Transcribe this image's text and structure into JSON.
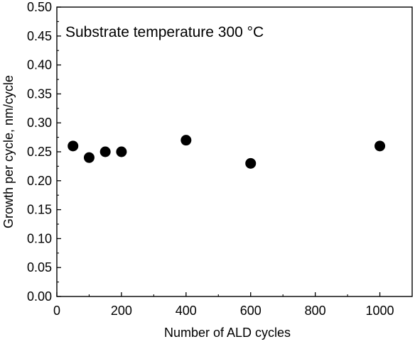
{
  "chart_data": {
    "type": "scatter",
    "title": "",
    "xlabel": "Number of ALD cycles",
    "ylabel": "Growth per cycle, nm/cycle",
    "annotation": "Substrate temperature 300 °C",
    "xlim": [
      0,
      1100
    ],
    "ylim": [
      0,
      0.5
    ],
    "x_ticks": [
      0,
      200,
      400,
      600,
      800,
      1000
    ],
    "x_tick_labels": [
      "0",
      "200",
      "400",
      "600",
      "800",
      "1000"
    ],
    "y_ticks": [
      0.0,
      0.05,
      0.1,
      0.15,
      0.2,
      0.25,
      0.3,
      0.35,
      0.4,
      0.45,
      0.5
    ],
    "y_tick_labels": [
      "0.00",
      "0.05",
      "0.10",
      "0.15",
      "0.20",
      "0.25",
      "0.30",
      "0.35",
      "0.40",
      "0.45",
      "0.50"
    ],
    "grid": false,
    "marker_color": "#000000",
    "series": [
      {
        "x": [
          50,
          100,
          150,
          200,
          400,
          600,
          1000
        ],
        "y": [
          0.26,
          0.24,
          0.25,
          0.25,
          0.27,
          0.23,
          0.26
        ]
      }
    ]
  }
}
